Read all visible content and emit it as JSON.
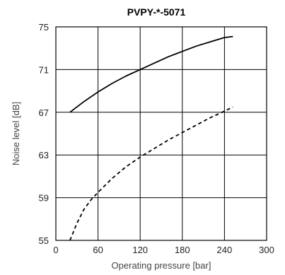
{
  "chart_data": {
    "type": "line",
    "title": "PVPY-*-5071",
    "xlabel": "Operating pressure  [bar]",
    "ylabel": "Noise level [dB]",
    "xlim": [
      0,
      300
    ],
    "ylim": [
      55,
      75
    ],
    "x_ticks": [
      "0",
      "60",
      "120",
      "180",
      "240",
      "300"
    ],
    "y_ticks": [
      "55",
      "59",
      "63",
      "67",
      "71",
      "75"
    ],
    "grid": true,
    "series": [
      {
        "line_style": "solid",
        "color": "#000000",
        "x": [
          20,
          40,
          60,
          80,
          100,
          120,
          140,
          160,
          180,
          200,
          220,
          240,
          252
        ],
        "y": [
          67.0,
          68.0,
          68.9,
          69.7,
          70.4,
          71.0,
          71.6,
          72.2,
          72.7,
          73.2,
          73.6,
          74.0,
          74.1
        ]
      },
      {
        "line_style": "dashed",
        "color": "#000000",
        "x": [
          20,
          30,
          40,
          50,
          60,
          80,
          100,
          120,
          140,
          160,
          180,
          200,
          220,
          240,
          252
        ],
        "y": [
          55.0,
          56.6,
          57.9,
          58.8,
          59.5,
          60.8,
          61.9,
          62.8,
          63.6,
          64.4,
          65.1,
          65.8,
          66.5,
          67.1,
          67.5
        ]
      }
    ]
  }
}
